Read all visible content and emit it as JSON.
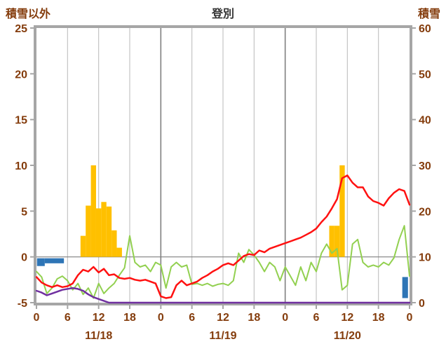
{
  "header": {
    "left_axis_title": "積雪以外",
    "chart_title": "登別",
    "right_axis_title": "積雪"
  },
  "chart_data": {
    "type": "line",
    "title": "登別",
    "x_unit": "hour",
    "x_range": [
      0,
      72
    ],
    "left_axis": {
      "label": "積雪以外",
      "ylim": [
        -5,
        25
      ],
      "ticks": [
        -5,
        0,
        5,
        10,
        15,
        20,
        25
      ]
    },
    "right_axis": {
      "label": "積雪",
      "ylim": [
        0,
        60
      ],
      "ticks": [
        0,
        10,
        20,
        30,
        40,
        50,
        60
      ]
    },
    "x_ticks": {
      "hours": [
        0,
        6,
        12,
        18,
        24,
        30,
        36,
        42,
        48,
        54,
        60,
        66,
        72
      ],
      "labels": [
        "0",
        "6",
        "12",
        "18",
        "0",
        "6",
        "12",
        "18",
        "0",
        "6",
        "12",
        "18",
        "0"
      ]
    },
    "date_labels": [
      {
        "hour": 12,
        "label": "11/18"
      },
      {
        "hour": 36,
        "label": "11/19"
      },
      {
        "hour": 60,
        "label": "11/20"
      }
    ],
    "grid": {
      "day_boundaries": [
        24,
        48
      ]
    },
    "bars": {
      "name": "orange-bars",
      "color": "#FFC000",
      "axis": "left",
      "values": [
        0,
        0,
        0,
        0,
        0,
        0,
        0,
        0,
        0,
        2.3,
        5.6,
        10,
        5.3,
        6.0,
        5.5,
        2.9,
        1.0,
        0,
        0,
        0,
        0,
        0,
        0,
        0,
        0,
        0,
        0,
        0,
        0,
        0,
        0,
        0,
        0,
        0,
        0,
        0,
        0,
        0,
        0,
        0,
        0,
        0,
        0,
        0,
        0,
        0,
        0,
        0,
        0,
        0,
        0,
        0,
        0,
        0,
        0,
        0,
        0,
        3.4,
        3.4,
        10,
        0,
        0,
        0,
        0,
        0,
        0,
        0,
        0,
        0,
        0,
        0,
        0,
        0,
        0
      ]
    },
    "blue_bars": {
      "name": "blue-bars",
      "color": "#2E75B6",
      "segments": [
        {
          "from": 0.1,
          "to": 1.6,
          "top": -0.15,
          "bottom": -1.0
        },
        {
          "from": 1.6,
          "to": 5.3,
          "top": -0.15,
          "bottom": -0.7
        },
        {
          "from": 70.6,
          "to": 71.7,
          "top": -2.2,
          "bottom": -4.5
        }
      ]
    },
    "series": [
      {
        "name": "green-line",
        "color": "#92D050",
        "width": 2,
        "axis": "left",
        "values": [
          -1.6,
          -2.2,
          -4.0,
          -3.4,
          -2.4,
          -2.1,
          -2.6,
          -3.6,
          -2.9,
          -4.1,
          -3.4,
          -4.5,
          -2.9,
          -4.0,
          -3.4,
          -2.9,
          -2.0,
          -1.2,
          2.3,
          -0.6,
          -1.1,
          -0.9,
          -1.6,
          -0.6,
          -0.9,
          -3.4,
          -1.1,
          -0.6,
          -1.1,
          -0.9,
          -3.0,
          -2.9,
          -3.1,
          -2.9,
          -3.2,
          -3.0,
          -2.9,
          -3.1,
          -2.6,
          0.4,
          -0.6,
          0.8,
          0.2,
          -0.6,
          -1.6,
          -0.6,
          -1.1,
          -2.6,
          -1.1,
          -2.1,
          -3.1,
          -1.1,
          -2.6,
          -0.6,
          -1.6,
          0.4,
          1.4,
          0.4,
          0.9,
          -3.6,
          -3.1,
          1.4,
          1.9,
          -0.6,
          -1.1,
          -0.9,
          -1.1,
          -0.6,
          -0.9,
          -0.1,
          1.9,
          3.4,
          -2.1
        ]
      },
      {
        "name": "purple-line",
        "color": "#7030A0",
        "width": 2.5,
        "axis": "left",
        "values": [
          -3.7,
          -3.9,
          -4.2,
          -4.0,
          -3.8,
          -3.6,
          -3.5,
          -3.4,
          -3.5,
          -3.7,
          -4.1,
          -4.4,
          -4.6,
          -4.8,
          -5,
          -5,
          -5,
          -5,
          -5,
          -5,
          -5,
          -5,
          -5,
          -5,
          -5,
          -5,
          -5,
          -5,
          -5,
          -5,
          -5,
          -5,
          -5,
          -5,
          -5,
          -5,
          -5,
          -5,
          -5,
          -5,
          -5,
          -5,
          -5,
          -5,
          -5,
          -5,
          -5,
          -5,
          -5,
          -5,
          -5,
          -5,
          -5,
          -5,
          -5,
          -5,
          -5,
          -5,
          -5,
          -5,
          -5,
          -5,
          -5,
          -5,
          -5,
          -5,
          -5,
          -5,
          -5,
          -5,
          -5,
          -5,
          -5
        ]
      },
      {
        "name": "red-line",
        "color": "#FF1111",
        "width": 2.5,
        "axis": "left",
        "values": [
          -2.2,
          -2.8,
          -3.1,
          -3.3,
          -3.1,
          -3.3,
          -3.2,
          -2.9,
          -2.0,
          -1.4,
          -1.6,
          -1.1,
          -1.7,
          -1.3,
          -2.0,
          -1.9,
          -2.3,
          -2.4,
          -2.3,
          -2.5,
          -2.6,
          -2.5,
          -2.7,
          -2.9,
          -4.3,
          -4.5,
          -4.4,
          -3.1,
          -2.6,
          -3.1,
          -2.9,
          -2.7,
          -2.3,
          -2.0,
          -1.6,
          -1.3,
          -0.9,
          -0.7,
          -0.9,
          -0.4,
          0.1,
          0.3,
          0.2,
          0.7,
          0.5,
          0.9,
          1.1,
          1.3,
          1.5,
          1.7,
          1.9,
          2.1,
          2.4,
          2.7,
          3.1,
          3.8,
          4.4,
          5.3,
          6.3,
          8.6,
          8.9,
          8.1,
          7.6,
          7.6,
          6.6,
          6.1,
          5.9,
          5.6,
          6.4,
          7.0,
          7.4,
          7.2,
          5.7
        ]
      }
    ],
    "colors": {
      "frame": "#A6A6A6",
      "grid": "#BFBFBF",
      "day_grid": "#7F7F7F",
      "zero_line": "#808080",
      "tick_text": "#843C0C",
      "title_text": "#333333"
    }
  }
}
